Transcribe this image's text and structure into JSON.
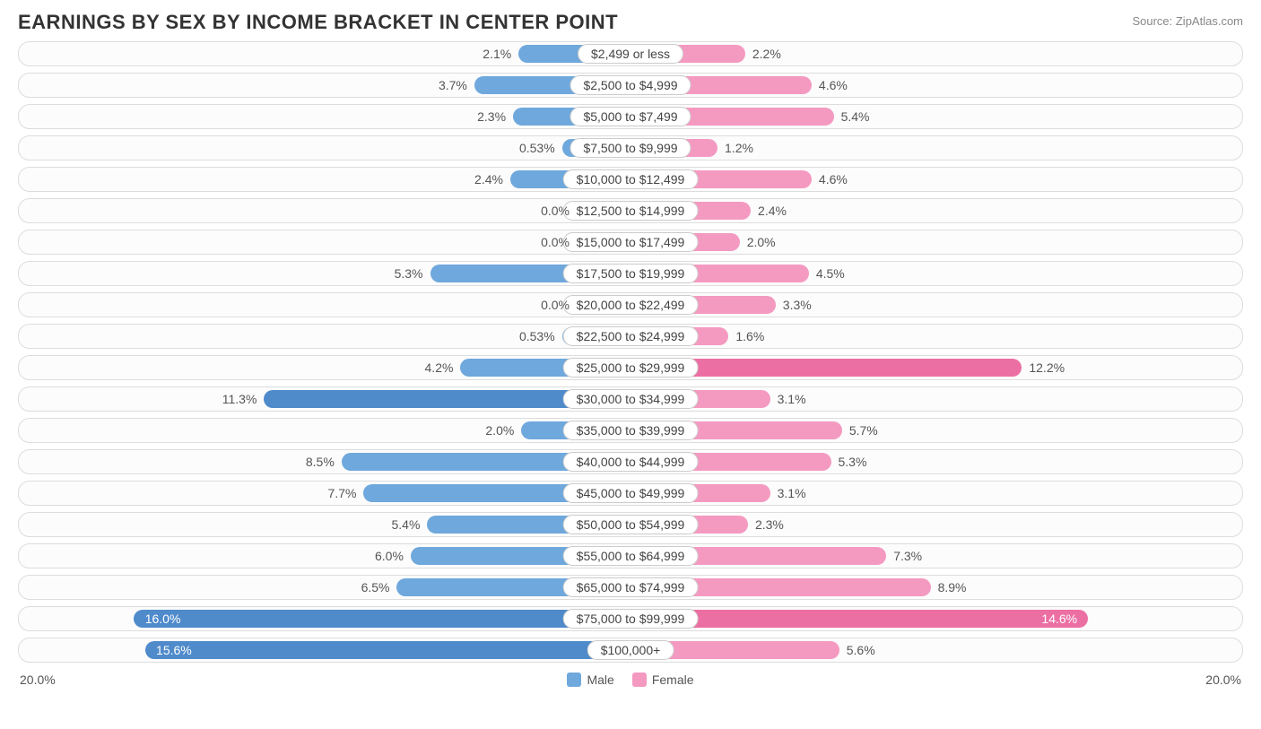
{
  "title": "EARNINGS BY SEX BY INCOME BRACKET IN CENTER POINT",
  "source": "Source: ZipAtlas.com",
  "chart": {
    "type": "diverging-bar",
    "axis_max": 20.0,
    "axis_label_left": "20.0%",
    "axis_label_right": "20.0%",
    "male_color": "#6fa8dc",
    "male_color_dark": "#4f8acb",
    "female_color": "#f49ac1",
    "female_color_dark": "#ec6fa3",
    "track_border": "#dddddd",
    "track_bg": "#fcfcfc",
    "label_border": "#cccccc",
    "text_color": "#555555",
    "inside_threshold": 13.0,
    "legend": {
      "male": "Male",
      "female": "Female"
    },
    "rows": [
      {
        "label": "$2,499 or less",
        "male": 2.1,
        "female": 2.2
      },
      {
        "label": "$2,500 to $4,999",
        "male": 3.7,
        "female": 4.6
      },
      {
        "label": "$5,000 to $7,499",
        "male": 2.3,
        "female": 5.4
      },
      {
        "label": "$7,500 to $9,999",
        "male": 0.53,
        "female": 1.2
      },
      {
        "label": "$10,000 to $12,499",
        "male": 2.4,
        "female": 4.6
      },
      {
        "label": "$12,500 to $14,999",
        "male": 0.0,
        "female": 2.4
      },
      {
        "label": "$15,000 to $17,499",
        "male": 0.0,
        "female": 2.0
      },
      {
        "label": "$17,500 to $19,999",
        "male": 5.3,
        "female": 4.5
      },
      {
        "label": "$20,000 to $22,499",
        "male": 0.0,
        "female": 3.3
      },
      {
        "label": "$22,500 to $24,999",
        "male": 0.53,
        "female": 1.6
      },
      {
        "label": "$25,000 to $29,999",
        "male": 4.2,
        "female": 12.2
      },
      {
        "label": "$30,000 to $34,999",
        "male": 11.3,
        "female": 3.1
      },
      {
        "label": "$35,000 to $39,999",
        "male": 2.0,
        "female": 5.7
      },
      {
        "label": "$40,000 to $44,999",
        "male": 8.5,
        "female": 5.3
      },
      {
        "label": "$45,000 to $49,999",
        "male": 7.7,
        "female": 3.1
      },
      {
        "label": "$50,000 to $54,999",
        "male": 5.4,
        "female": 2.3
      },
      {
        "label": "$55,000 to $64,999",
        "male": 6.0,
        "female": 7.3
      },
      {
        "label": "$65,000 to $74,999",
        "male": 6.5,
        "female": 8.9
      },
      {
        "label": "$75,000 to $99,999",
        "male": 16.0,
        "female": 14.6
      },
      {
        "label": "$100,000+",
        "male": 15.6,
        "female": 5.6
      }
    ]
  }
}
